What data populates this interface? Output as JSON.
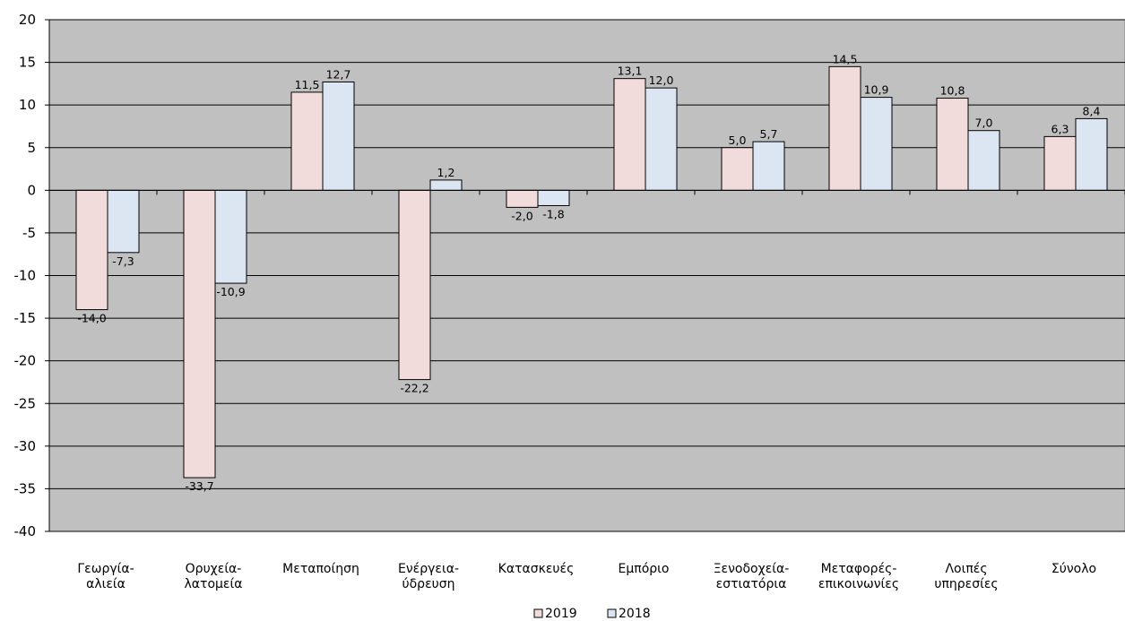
{
  "chart_data": {
    "type": "bar",
    "categories": [
      [
        "Γεωργία-",
        "αλιεία"
      ],
      [
        "Ορυχεία-",
        "λατομεία"
      ],
      [
        "Μεταποίηση"
      ],
      [
        "Ενέργεια-",
        "ύδρευση"
      ],
      [
        "Κατασκευές"
      ],
      [
        "Εμπόριο"
      ],
      [
        "Ξενοδοχεία-",
        "εστιατόρια"
      ],
      [
        "Μεταφορές-",
        "επικοινωνίες"
      ],
      [
        "Λοιπές",
        "υπηρεσίες"
      ],
      [
        "Σύνολο"
      ]
    ],
    "series": [
      {
        "name": "2019",
        "color": "#f2dcdb",
        "values": [
          -14.0,
          -33.7,
          11.5,
          -22.2,
          -2.0,
          13.1,
          5.0,
          14.5,
          10.8,
          6.3
        ],
        "labels": [
          "-14,0",
          "-33,7",
          "11,5",
          "-22,2",
          "-2,0",
          "13,1",
          "5,0",
          "14,5",
          "10,8",
          "6,3"
        ]
      },
      {
        "name": "2018",
        "color": "#dce6f2",
        "values": [
          -7.3,
          -10.9,
          12.7,
          1.2,
          -1.8,
          12.0,
          5.7,
          10.9,
          7.0,
          8.4
        ],
        "labels": [
          "-7,3",
          "-10,9",
          "12,7",
          "1,2",
          "-1,8",
          "12,0",
          "5,7",
          "10,9",
          "7,0",
          "8,4"
        ]
      }
    ],
    "ylim": [
      -40,
      20
    ],
    "yticks": [
      20,
      15,
      10,
      5,
      0,
      -5,
      -10,
      -15,
      -20,
      -25,
      -30,
      -35,
      -40
    ],
    "grid": true,
    "plot_background": "#c0c0c0",
    "legend": "bottom-center"
  }
}
